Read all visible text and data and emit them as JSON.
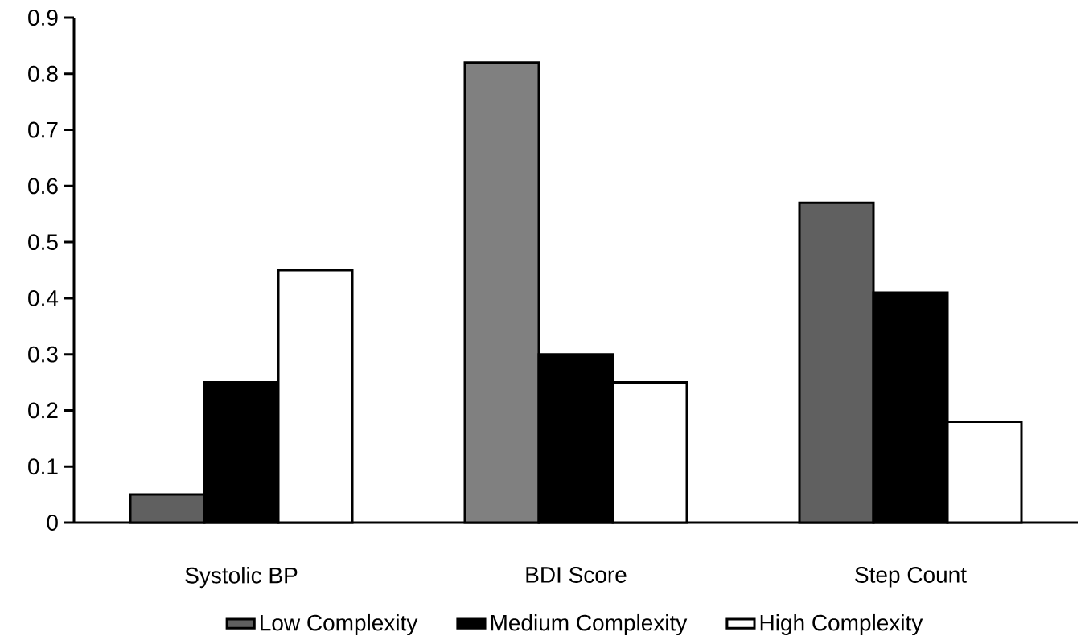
{
  "chart_data": {
    "type": "bar",
    "categories": [
      "Systolic BP",
      "BDI Score",
      "Step Count"
    ],
    "series": [
      {
        "name": "Low Complexity",
        "color": "#606060",
        "colors": [
          "#606060",
          "#808080",
          "#606060"
        ],
        "values": [
          0.05,
          0.82,
          0.57
        ]
      },
      {
        "name": "Medium Complexity",
        "color": "#000000",
        "values": [
          0.25,
          0.3,
          0.41
        ]
      },
      {
        "name": "High Complexity",
        "color": "#ffffff",
        "values": [
          0.45,
          0.25,
          0.18
        ]
      }
    ],
    "ylim": [
      0,
      0.9
    ],
    "yticks": [
      0,
      0.1,
      0.2,
      0.3,
      0.4,
      0.5,
      0.6,
      0.7,
      0.8,
      0.9
    ],
    "grid": false,
    "legend": "bottom"
  }
}
